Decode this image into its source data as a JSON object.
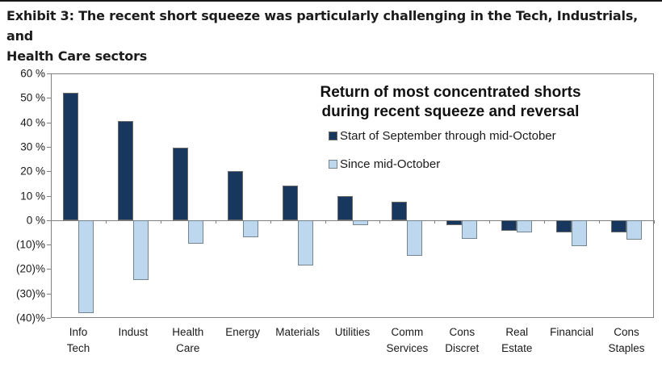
{
  "header": {
    "title": "Exhibit 3: The recent short squeeze was particularly challenging in the Tech, Industrials, and Health Care sectors",
    "title_line1": "Exhibit 3: The recent short squeeze was particularly challenging in the Tech, Industrials, and",
    "title_line2": "Health Care sectors"
  },
  "chart_data": {
    "type": "bar",
    "title": "Return of most concentrated shorts during recent squeeze and reversal",
    "legend_title_line1": "Return of most concentrated shorts",
    "legend_title_line2": "during recent squeeze and reversal",
    "legend_position": "top-right-inside",
    "grid": false,
    "categories": [
      "Info Tech",
      "Indust",
      "Health Care",
      "Energy",
      "Materials",
      "Utilities",
      "Comm Services",
      "Cons Discret",
      "Real Estate",
      "Financial",
      "Cons Staples"
    ],
    "category_label_lines": [
      [
        "Info",
        "Tech"
      ],
      [
        "Indust"
      ],
      [
        "Health",
        "Care"
      ],
      [
        "Energy"
      ],
      [
        "Materials"
      ],
      [
        "Utilities"
      ],
      [
        "Comm",
        "Services"
      ],
      [
        "Cons",
        "Discret"
      ],
      [
        "Real",
        "Estate"
      ],
      [
        "Financial"
      ],
      [
        "Cons",
        "Staples"
      ]
    ],
    "series": [
      {
        "name": "Start of September through mid-October",
        "color": "#17375E",
        "border_color": "#6b6b6b",
        "values": [
          52,
          40.5,
          29.5,
          20,
          14,
          10,
          7.5,
          -2,
          -4.5,
          -5,
          -5
        ]
      },
      {
        "name": "Since mid-October",
        "color": "#BDD7EE",
        "border_color": "#74858f",
        "values": [
          -38,
          -24.5,
          -9.5,
          -7,
          -18.5,
          -2,
          -14.5,
          -7.5,
          -5,
          -10.5,
          -8
        ]
      }
    ],
    "ylim": [
      -40,
      60
    ],
    "ytick_step": 10,
    "ytick_labels": [
      "60 %",
      "50 %",
      "40 %",
      "30 %",
      "20 %",
      "10 %",
      "0 %",
      "(10)%",
      "(20)%",
      "(30)%",
      "(40)%"
    ],
    "xlabel": "",
    "ylabel": "",
    "axis_color": "#808080"
  }
}
